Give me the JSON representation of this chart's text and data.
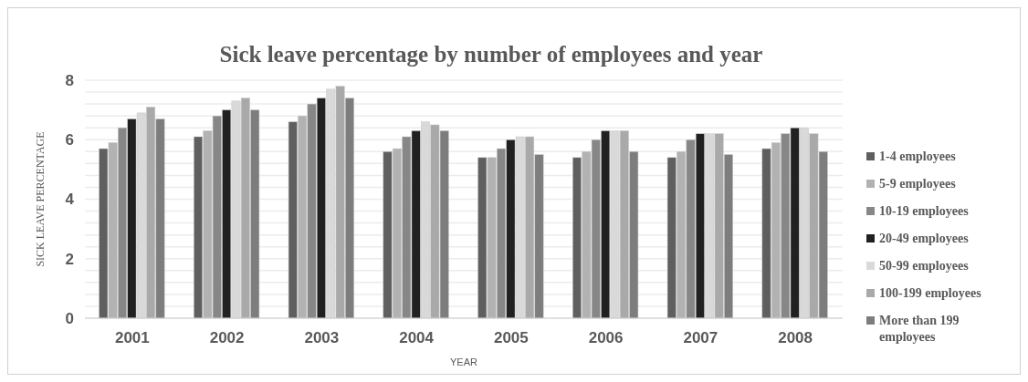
{
  "chart_data": {
    "type": "bar",
    "title": "Sick leave percentage by number of employees and year",
    "xlabel": "YEAR",
    "ylabel": "SICK LEAVE PERCENTAGE",
    "categories": [
      "2001",
      "2002",
      "2003",
      "2004",
      "2005",
      "2006",
      "2007",
      "2008"
    ],
    "series": [
      {
        "name": "1-4 employees",
        "color": "#5f5f5f",
        "values": [
          5.7,
          6.1,
          6.6,
          5.6,
          5.4,
          5.4,
          5.4,
          5.7
        ]
      },
      {
        "name": "5-9 employees",
        "color": "#b2b2b2",
        "values": [
          5.9,
          6.3,
          6.8,
          5.7,
          5.4,
          5.6,
          5.6,
          5.9
        ]
      },
      {
        "name": "10-19 employees",
        "color": "#878787",
        "values": [
          6.4,
          6.8,
          7.2,
          6.1,
          5.7,
          6.0,
          6.0,
          6.2
        ]
      },
      {
        "name": "20-49 employees",
        "color": "#212121",
        "values": [
          6.7,
          7.0,
          7.4,
          6.3,
          6.0,
          6.3,
          6.2,
          6.4
        ]
      },
      {
        "name": "50-99 employees",
        "color": "#d9d9d9",
        "values": [
          6.9,
          7.3,
          7.7,
          6.6,
          6.1,
          6.3,
          6.2,
          6.4
        ]
      },
      {
        "name": "100-199 employees",
        "color": "#a9a9a9",
        "values": [
          7.1,
          7.4,
          7.8,
          6.5,
          6.1,
          6.3,
          6.2,
          6.2
        ]
      },
      {
        "name": "More than 199 employees",
        "color": "#7d7d7d",
        "values": [
          6.7,
          7.0,
          7.4,
          6.3,
          5.5,
          5.6,
          5.5,
          5.6
        ]
      }
    ],
    "ylim": [
      0,
      8
    ],
    "yticks": [
      0,
      {
        "value": 0.4,
        "label": null
      },
      {
        "value": 0.8,
        "label": null
      },
      {
        "value": 1.2,
        "label": null
      },
      {
        "value": 1.6,
        "label": null
      },
      2,
      {
        "value": 2.4,
        "label": null
      },
      {
        "value": 2.8,
        "label": null
      },
      {
        "value": 3.2,
        "label": null
      },
      {
        "value": 3.6,
        "label": null
      },
      4,
      {
        "value": 4.4,
        "label": null
      },
      {
        "value": 4.8,
        "label": null
      },
      {
        "value": 5.2,
        "label": null
      },
      {
        "value": 5.6,
        "label": null
      },
      6,
      {
        "value": 6.4,
        "label": null
      },
      {
        "value": 6.8,
        "label": null
      },
      {
        "value": 7.2,
        "label": null
      },
      {
        "value": 7.6,
        "label": null
      },
      8
    ],
    "grid": "y",
    "legend": "right"
  }
}
